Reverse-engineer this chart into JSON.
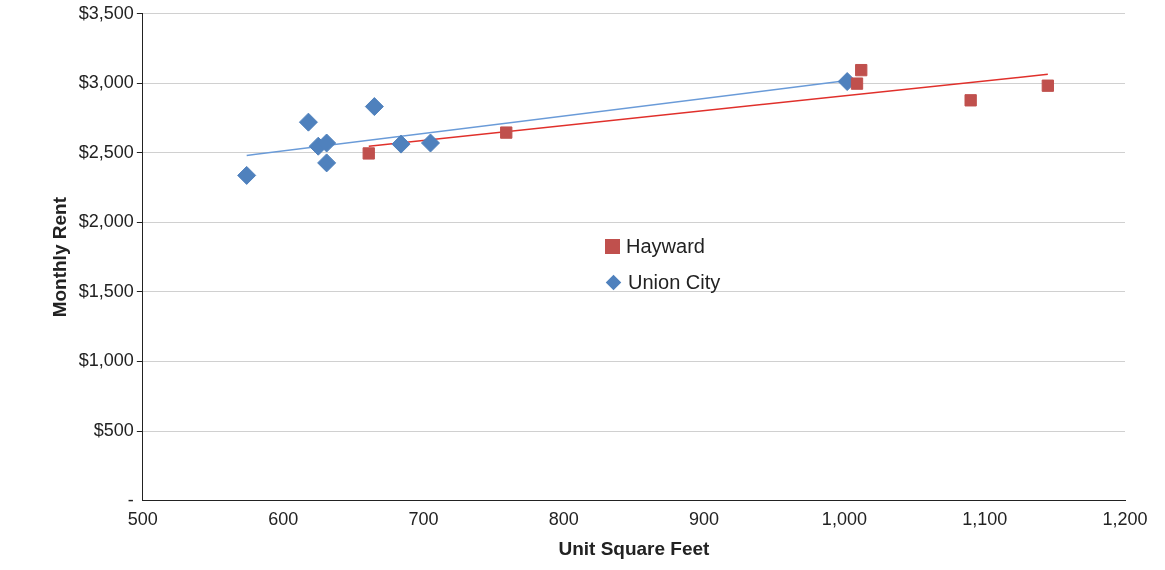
{
  "chart_data": {
    "type": "scatter",
    "xlabel": "Unit Square Feet",
    "ylabel": "Monthly Rent",
    "xlim": [
      500,
      1200
    ],
    "xticks": [
      500,
      600,
      700,
      800,
      900,
      {
        "value": 1000,
        "label": "1,000"
      },
      {
        "value": 1100,
        "label": "1,100"
      },
      {
        "value": 1200,
        "label": "1,200"
      }
    ],
    "ylim": [
      0,
      3500
    ],
    "yticks": [
      {
        "value": 0,
        "label": "-"
      },
      {
        "value": 500,
        "label": "$500"
      },
      {
        "value": 1000,
        "label": "$1,000"
      },
      {
        "value": 1500,
        "label": "$1,500"
      },
      {
        "value": 2000,
        "label": "$2,000"
      },
      {
        "value": 2500,
        "label": "$2,500"
      },
      {
        "value": 3000,
        "label": "$3,000"
      },
      {
        "value": 3500,
        "label": "$3,500"
      }
    ],
    "grid": "y",
    "legend": "right",
    "series": [
      {
        "name": "Hayward",
        "type": "scatter",
        "marker": "square",
        "color": "#c0504d",
        "x": [
          661,
          759,
          1012,
          1009,
          1090,
          1145
        ],
        "values": [
          2496,
          2646,
          3095,
          2998,
          2878,
          2983
        ]
      },
      {
        "name": "Union City",
        "type": "scatter",
        "marker": "diamond",
        "color": "#4f81bd",
        "x": [
          574,
          618,
          625,
          631,
          631,
          665,
          684,
          705,
          1002
        ],
        "values": [
          2338,
          2721,
          2548,
          2571,
          2428,
          2833,
          2563,
          2571,
          3013
        ]
      },
      {
        "type": "line",
        "marker": "none",
        "color": "#e0302b",
        "x": [
          661,
          1145
        ],
        "values": [
          2548,
          3065
        ]
      },
      {
        "type": "line",
        "marker": "none",
        "color": "#6a9bd8",
        "x": [
          574,
          1002
        ],
        "values": [
          2481,
          3020
        ]
      }
    ]
  }
}
